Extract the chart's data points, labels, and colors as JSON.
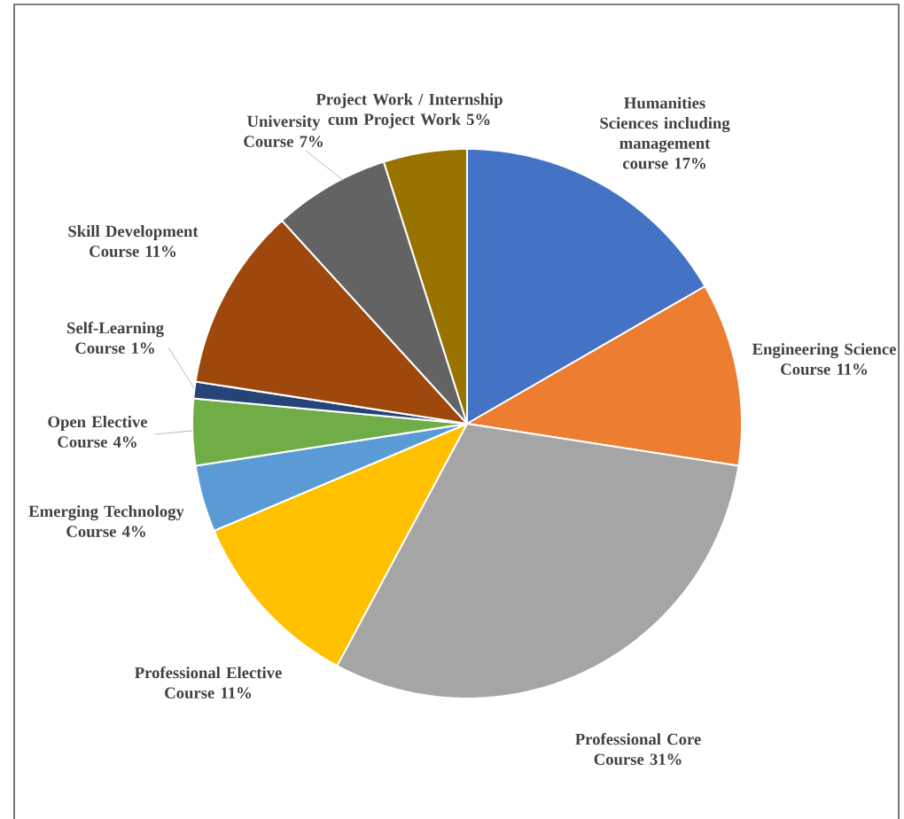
{
  "chart_data": {
    "type": "pie",
    "categories": [
      "Humanities Sciences including management course",
      "Engineering Science Course",
      "Professional Core Course",
      "Professional Elective Course",
      "Emerging Technology Course",
      "Open Elective Course",
      "Self-Learning Course",
      "Skill Development Course",
      "University Course",
      "Project Work / Internship cum Project Work"
    ],
    "values": [
      17,
      11,
      31,
      11,
      4,
      4,
      1,
      11,
      7,
      5
    ],
    "value_labels": [
      "17%",
      "11%",
      "31%",
      "11%",
      "4%",
      "4%",
      "1%",
      "11%",
      "7%",
      "5%"
    ],
    "colors": [
      "#4472c4",
      "#ed7d31",
      "#a5a5a5",
      "#ffc000",
      "#5b9bd5",
      "#70ad47",
      "#264478",
      "#9e480e",
      "#636363",
      "#997300"
    ]
  }
}
